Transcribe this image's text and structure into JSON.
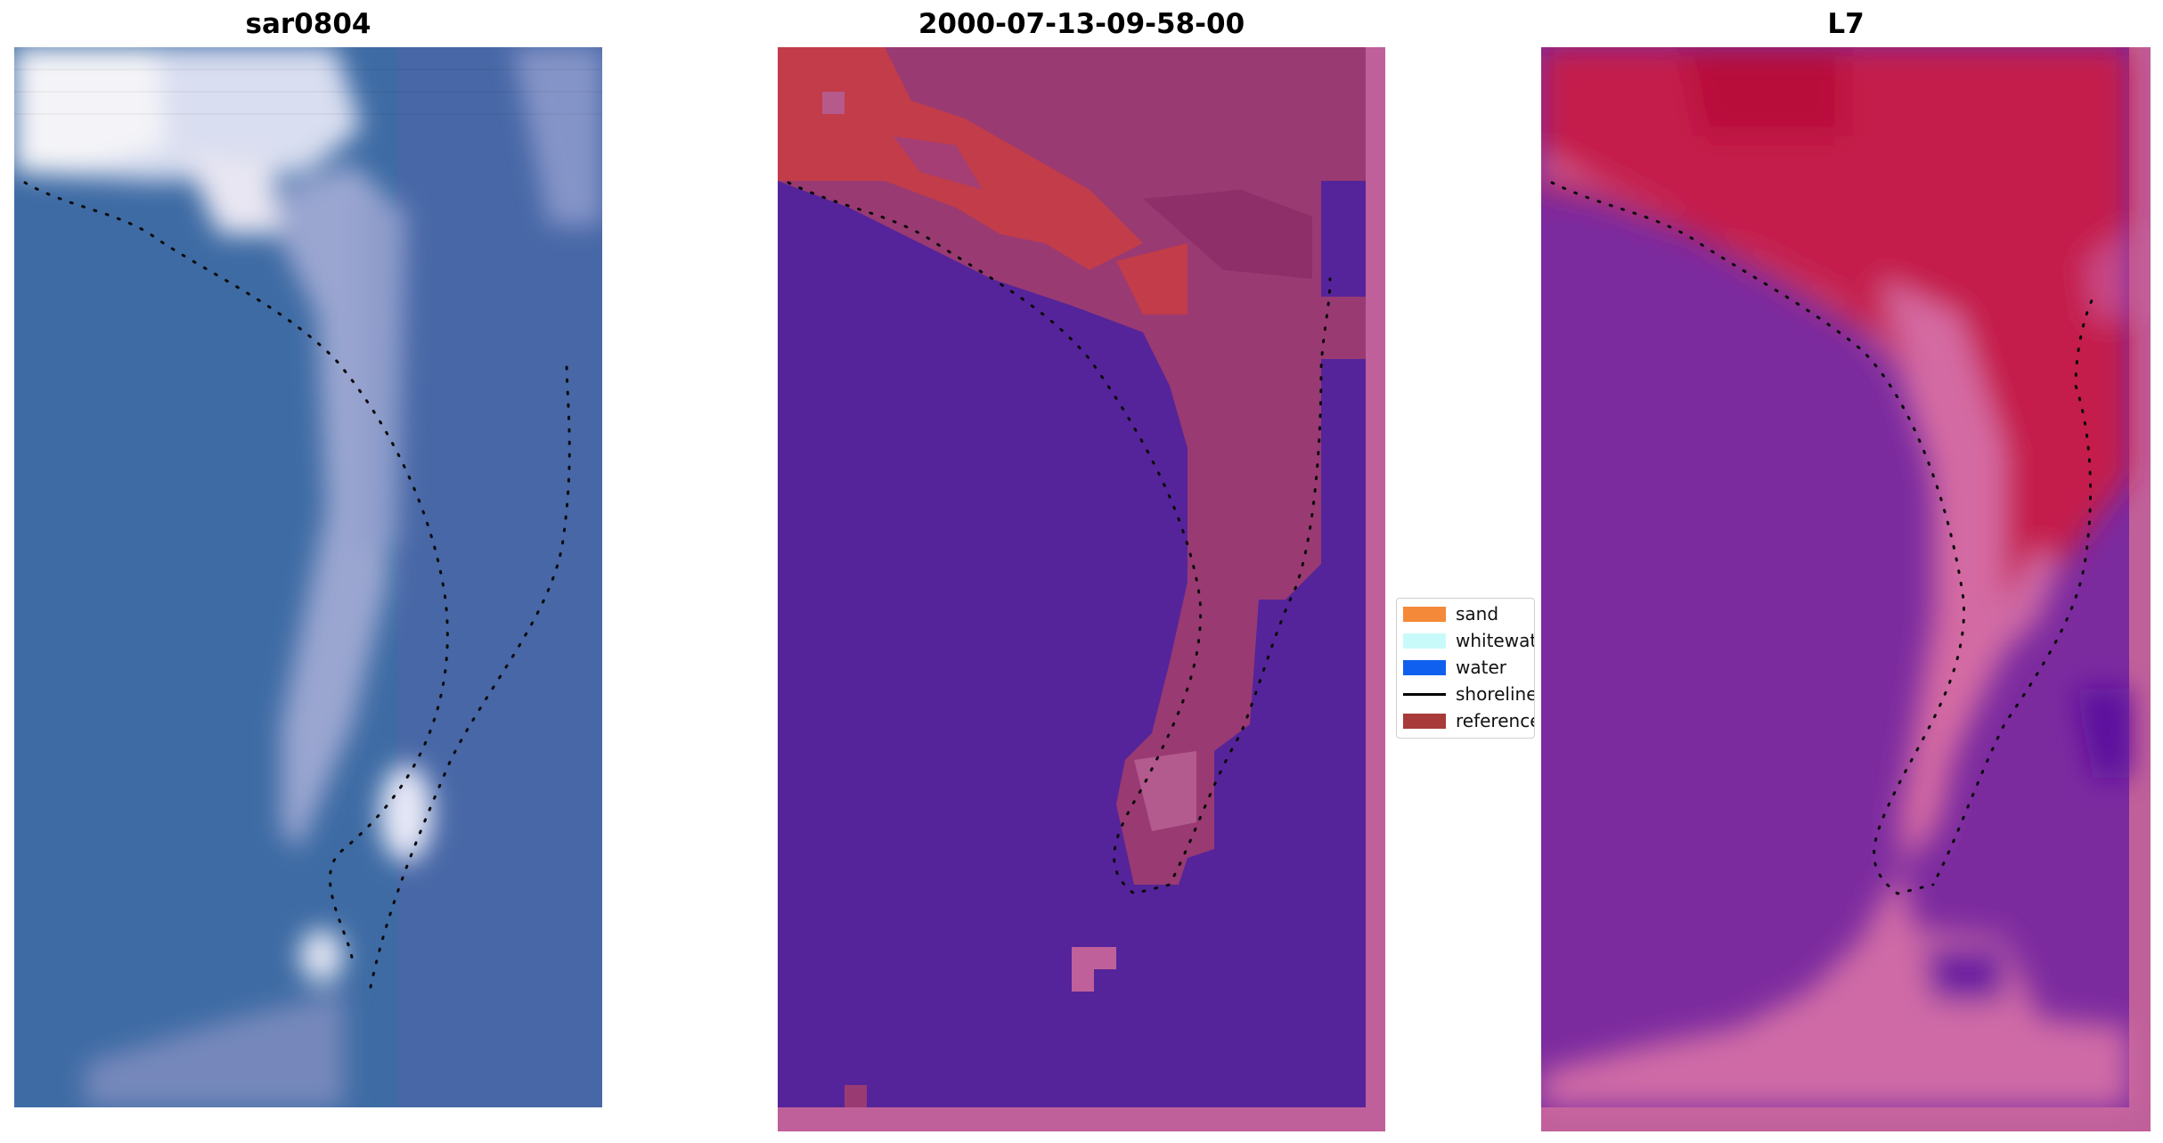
{
  "panels": [
    {
      "title": "sar0804"
    },
    {
      "title": "2000-07-13-09-58-00"
    },
    {
      "title": "L7"
    }
  ],
  "legend": {
    "items": [
      {
        "label": "sand",
        "color": "#f4893a",
        "kind": "patch"
      },
      {
        "label": "whitewater",
        "color": "#c8fafa",
        "kind": "patch"
      },
      {
        "label": "water",
        "color": "#1060f0",
        "kind": "patch"
      },
      {
        "label": "shoreline",
        "color": "#000000",
        "kind": "line"
      },
      {
        "label": "reference",
        "color": "#a83a3a",
        "kind": "patch"
      }
    ]
  },
  "colors": {
    "ocean_rgb": "#3d6ea8",
    "sand_rgb": "#c9d3ea",
    "classified_water": "#55249a",
    "classified_land": "#9a3a72",
    "classified_sand": "#c23c4a",
    "nir_land": "#c2174a",
    "nir_water": "#7a2a9c",
    "border_pink": "#c0609a"
  }
}
